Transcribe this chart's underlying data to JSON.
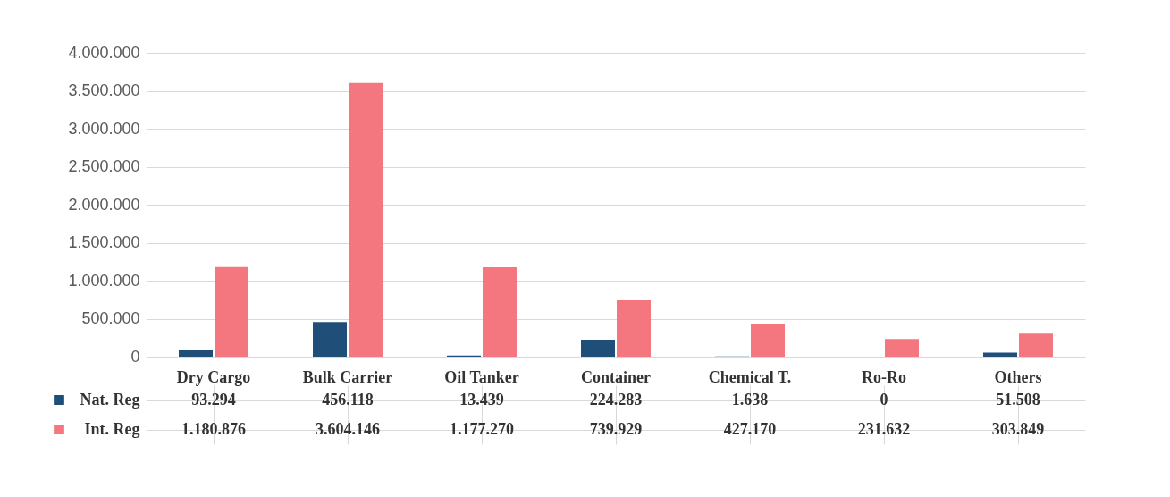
{
  "chart_data": {
    "type": "bar",
    "categories": [
      "Dry Cargo",
      "Bulk Carrier",
      "Oil Tanker",
      "Container",
      "Chemical T.",
      "Ro-Ro",
      "Others"
    ],
    "series": [
      {
        "name": "Nat. Reg",
        "color": "#1f4e79",
        "values": [
          93294,
          456118,
          13439,
          224283,
          1638,
          0,
          51508
        ],
        "value_labels": [
          "93.294",
          "456.118",
          "13.439",
          "224.283",
          "1.638",
          "0",
          "51.508"
        ]
      },
      {
        "name": "Int. Reg",
        "color": "#f4777f",
        "values": [
          1180876,
          3604146,
          1177270,
          739929,
          427170,
          231632,
          303849
        ],
        "value_labels": [
          "1.180.876",
          "3.604.146",
          "1.177.270",
          "739.929",
          "427.170",
          "231.632",
          "303.849"
        ]
      }
    ],
    "ylim": [
      0,
      4000000
    ],
    "yticks": [
      0,
      {
        "value": 500000,
        "label": "500.000"
      },
      {
        "value": 1000000,
        "label": "1.000.000"
      },
      {
        "value": 1500000,
        "label": "1.500.000"
      },
      {
        "value": 2000000,
        "label": "2.000.000"
      },
      {
        "value": 2500000,
        "label": "2.500.000"
      },
      {
        "value": 3000000,
        "label": "3.000.000"
      },
      {
        "value": 3500000,
        "label": "3.500.000"
      },
      {
        "value": 4000000,
        "label": "4.000.000"
      }
    ],
    "grid": "y",
    "legend": "bottom left"
  }
}
